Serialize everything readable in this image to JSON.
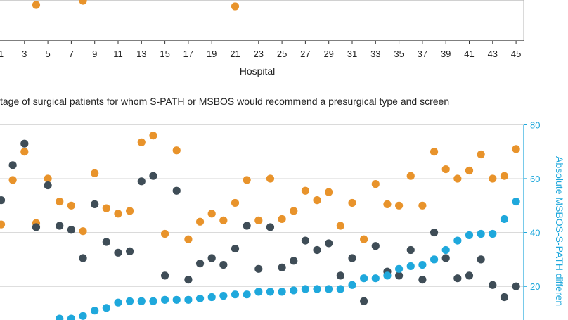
{
  "chart_data": [
    {
      "type": "scatter",
      "xlabel": "Hospital",
      "x_ticks": [
        "1",
        "3",
        "5",
        "7",
        "9",
        "11",
        "13",
        "15",
        "17",
        "19",
        "21",
        "23",
        "25",
        "27",
        "29",
        "31",
        "33",
        "35",
        "37",
        "39",
        "41",
        "43",
        "45"
      ],
      "series": [
        {
          "name": "",
          "color": "#e8932b",
          "x": [
            4,
            8,
            21
          ],
          "y": [
            0,
            0,
            0
          ]
        }
      ]
    },
    {
      "type": "scatter",
      "title": "tage of surgical patients for whom S-PATH or MSBOS would recommend a presurgical type and screen",
      "ylabel_right": "Absolute MSBOS-S-PATH differen",
      "y_ticks_right": [
        "80",
        "60",
        "40",
        "20"
      ],
      "ylim": [
        10,
        80
      ],
      "x": [
        1,
        2,
        3,
        4,
        5,
        6,
        7,
        8,
        9,
        10,
        11,
        12,
        13,
        14,
        15,
        16,
        17,
        18,
        19,
        20,
        21,
        22,
        23,
        24,
        25,
        26,
        27,
        28,
        29,
        30,
        31,
        32,
        33,
        34,
        35,
        36,
        37,
        38,
        39,
        40,
        41,
        42,
        43,
        44,
        45
      ],
      "series": [
        {
          "name": "",
          "color": "#e8932b",
          "values": [
            43,
            59.5,
            70,
            43.5,
            60,
            51.5,
            50,
            40.5,
            62,
            49,
            47,
            48,
            73.5,
            76,
            39.5,
            70.5,
            37.5,
            44,
            47,
            44.5,
            51,
            59.5,
            44.5,
            60,
            45,
            48,
            55.5,
            52,
            55,
            42.5,
            51,
            37.5,
            58,
            50.5,
            50,
            61,
            50,
            70,
            63.5,
            60,
            63,
            69,
            60,
            61,
            71
          ]
        },
        {
          "name": "",
          "color": "#3f4d57",
          "values": [
            52,
            65,
            73,
            42,
            57.5,
            42.5,
            41,
            30.5,
            50.5,
            36.5,
            32.5,
            33,
            59,
            61,
            24,
            55.5,
            22.5,
            28.5,
            30.5,
            28,
            34,
            42.5,
            26.5,
            42,
            27,
            29.5,
            37,
            33.5,
            36,
            24,
            30.5,
            14.5,
            35,
            25.5,
            24,
            33.5,
            22.5,
            40,
            30.5,
            23,
            24,
            30,
            20.5,
            16,
            20
          ]
        },
        {
          "name": "",
          "color": "#1fa8dc",
          "values": [
            null,
            null,
            null,
            null,
            null,
            8,
            8,
            9,
            11,
            12,
            14,
            14.5,
            14.5,
            14.5,
            15,
            15,
            15,
            15.5,
            16,
            16.5,
            17,
            17,
            18,
            18,
            18,
            18.5,
            19,
            19,
            19,
            19,
            20.5,
            23,
            23,
            24,
            26.5,
            27.5,
            28,
            30,
            33.5,
            37,
            39,
            39.5,
            39.5,
            45,
            51.5
          ]
        }
      ]
    }
  ]
}
